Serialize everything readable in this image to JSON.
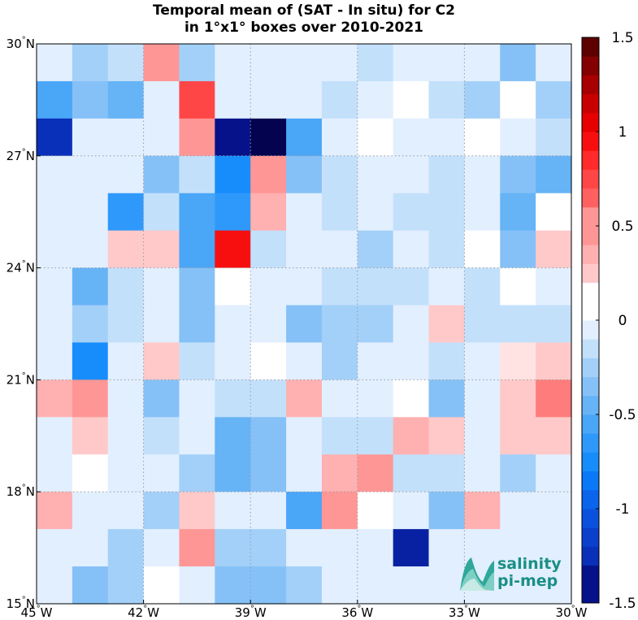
{
  "chart_data": {
    "type": "heatmap",
    "title_lines": [
      "Temporal mean of (SAT - In situ) for C2",
      "in 1°x1° boxes over 2010-2021"
    ],
    "x_ticks": [
      {
        "value": -45,
        "deg": "45",
        "hemi": "W"
      },
      {
        "value": -42,
        "deg": "42",
        "hemi": "W"
      },
      {
        "value": -39,
        "deg": "39",
        "hemi": "W"
      },
      {
        "value": -36,
        "deg": "36",
        "hemi": "W"
      },
      {
        "value": -33,
        "deg": "33",
        "hemi": "W"
      },
      {
        "value": -30,
        "deg": "30",
        "hemi": "W"
      }
    ],
    "y_ticks": [
      {
        "value": 15,
        "deg": "15",
        "hemi": "N"
      },
      {
        "value": 18,
        "deg": "18",
        "hemi": "N"
      },
      {
        "value": 21,
        "deg": "21",
        "hemi": "N"
      },
      {
        "value": 24,
        "deg": "24",
        "hemi": "N"
      },
      {
        "value": 27,
        "deg": "27",
        "hemi": "N"
      },
      {
        "value": 30,
        "deg": "30",
        "hemi": "N"
      }
    ],
    "xlim": [
      -45,
      -30
    ],
    "ylim": [
      15,
      30
    ],
    "grid": "dotted",
    "colorbar": {
      "placement": "right",
      "range": [
        -1.5,
        1.5
      ],
      "levels": 30,
      "tick_values": [
        1.5,
        1,
        0.5,
        0,
        -0.5,
        -1,
        -1.5
      ],
      "tick_labels": [
        "1.5",
        "1",
        "0.5",
        "0",
        "-0.5",
        "-1",
        "-1.5"
      ],
      "colors": [
        "#03034f",
        "#06128a",
        "#0821a2",
        "#0930b8",
        "#0a40cc",
        "#0a52de",
        "#0a64ec",
        "#0a78f7",
        "#178dfc",
        "#2f99fb",
        "#4aa6f7",
        "#66b3f6",
        "#85c1f7",
        "#a3d0f8",
        "#c3e0fb",
        "#e2efff",
        "#ffffff",
        "#ffe3e3",
        "#ffc9c9",
        "#ffb0b0",
        "#ff9696",
        "#ff7c7c",
        "#ff6161",
        "#ff4646",
        "#ff2b2b",
        "#f70f0f",
        "#e60000",
        "#c80000",
        "#a80000",
        "#850000",
        "#5c0000"
      ]
    },
    "row_lats": [
      29.5,
      28.5,
      27.5,
      26.5,
      25.5,
      24.5,
      23.5,
      22.5,
      21.5,
      20.5,
      19.5,
      18.5,
      17.5,
      16.5,
      15.5
    ],
    "col_lons": [
      -44.5,
      -43.5,
      -42.5,
      -41.5,
      -40.5,
      -39.5,
      -38.5,
      -37.5,
      -36.5,
      -35.5,
      -34.5,
      -33.5,
      -32.5,
      -31.5,
      -30.5
    ],
    "values": [
      [
        0,
        -0.25,
        -0.15,
        0.45,
        -0.25,
        0,
        0,
        0,
        0,
        -0.1,
        0,
        0,
        0,
        -0.35,
        0
      ],
      [
        -0.5,
        -0.3,
        -0.45,
        0,
        0.8,
        0,
        0,
        0,
        -0.1,
        0,
        0.1,
        -0.1,
        -0.2,
        0.1,
        -0.2
      ],
      [
        -1.2,
        0,
        0,
        0,
        0.55,
        -1.45,
        -1.55,
        -0.5,
        0,
        0.1,
        0,
        0,
        0.1,
        0,
        -0.1
      ],
      [
        0,
        0,
        0,
        -0.3,
        -0.1,
        -0.75,
        0.45,
        -0.3,
        -0.1,
        0,
        0,
        -0.1,
        0,
        -0.3,
        -0.45
      ],
      [
        0,
        0,
        -0.6,
        -0.1,
        -0.5,
        -0.6,
        0.35,
        0,
        -0.1,
        0,
        -0.1,
        -0.1,
        0,
        -0.45,
        0.1
      ],
      [
        0,
        0,
        0.3,
        0.25,
        -0.5,
        0.95,
        -0.1,
        0,
        0,
        -0.2,
        0,
        -0.1,
        0.1,
        -0.3,
        0.25
      ],
      [
        0,
        -0.45,
        -0.1,
        0,
        -0.3,
        0.1,
        0,
        0,
        -0.1,
        -0.1,
        -0.1,
        0,
        -0.1,
        0.1,
        0
      ],
      [
        0,
        -0.2,
        -0.1,
        0,
        -0.3,
        0,
        0,
        -0.3,
        -0.2,
        -0.2,
        0,
        0.25,
        -0.1,
        -0.1,
        -0.1
      ],
      [
        0,
        -0.75,
        0,
        0.25,
        -0.1,
        0,
        0.1,
        0,
        -0.2,
        0,
        0,
        -0.1,
        0,
        0.2,
        0.3
      ],
      [
        0.35,
        0.45,
        0,
        -0.3,
        0,
        -0.1,
        -0.1,
        0.35,
        0,
        0,
        0.1,
        -0.3,
        0,
        0.25,
        0.6
      ],
      [
        0,
        0.25,
        0,
        -0.1,
        0,
        -0.4,
        -0.3,
        0,
        -0.1,
        -0.1,
        0.35,
        0.25,
        0,
        0.25,
        0.25
      ],
      [
        0,
        0.1,
        0,
        0,
        -0.2,
        -0.4,
        -0.3,
        0,
        0.35,
        0.5,
        -0.1,
        -0.1,
        0,
        -0.2,
        0
      ],
      [
        0.35,
        0,
        0,
        -0.2,
        0.25,
        0,
        0,
        -0.55,
        0.5,
        0.1,
        0,
        -0.3,
        0.35,
        0,
        0
      ],
      [
        0,
        0,
        -0.2,
        0,
        0.45,
        -0.2,
        -0.2,
        0,
        0,
        0,
        -1.3,
        0,
        0,
        0,
        0
      ],
      [
        0,
        -0.3,
        -0.2,
        0.1,
        0,
        -0.3,
        -0.3,
        -0.2,
        0,
        0,
        0,
        0,
        0,
        0,
        0
      ]
    ]
  },
  "logo": {
    "line1": "salinity",
    "line2": "pi-mep"
  }
}
